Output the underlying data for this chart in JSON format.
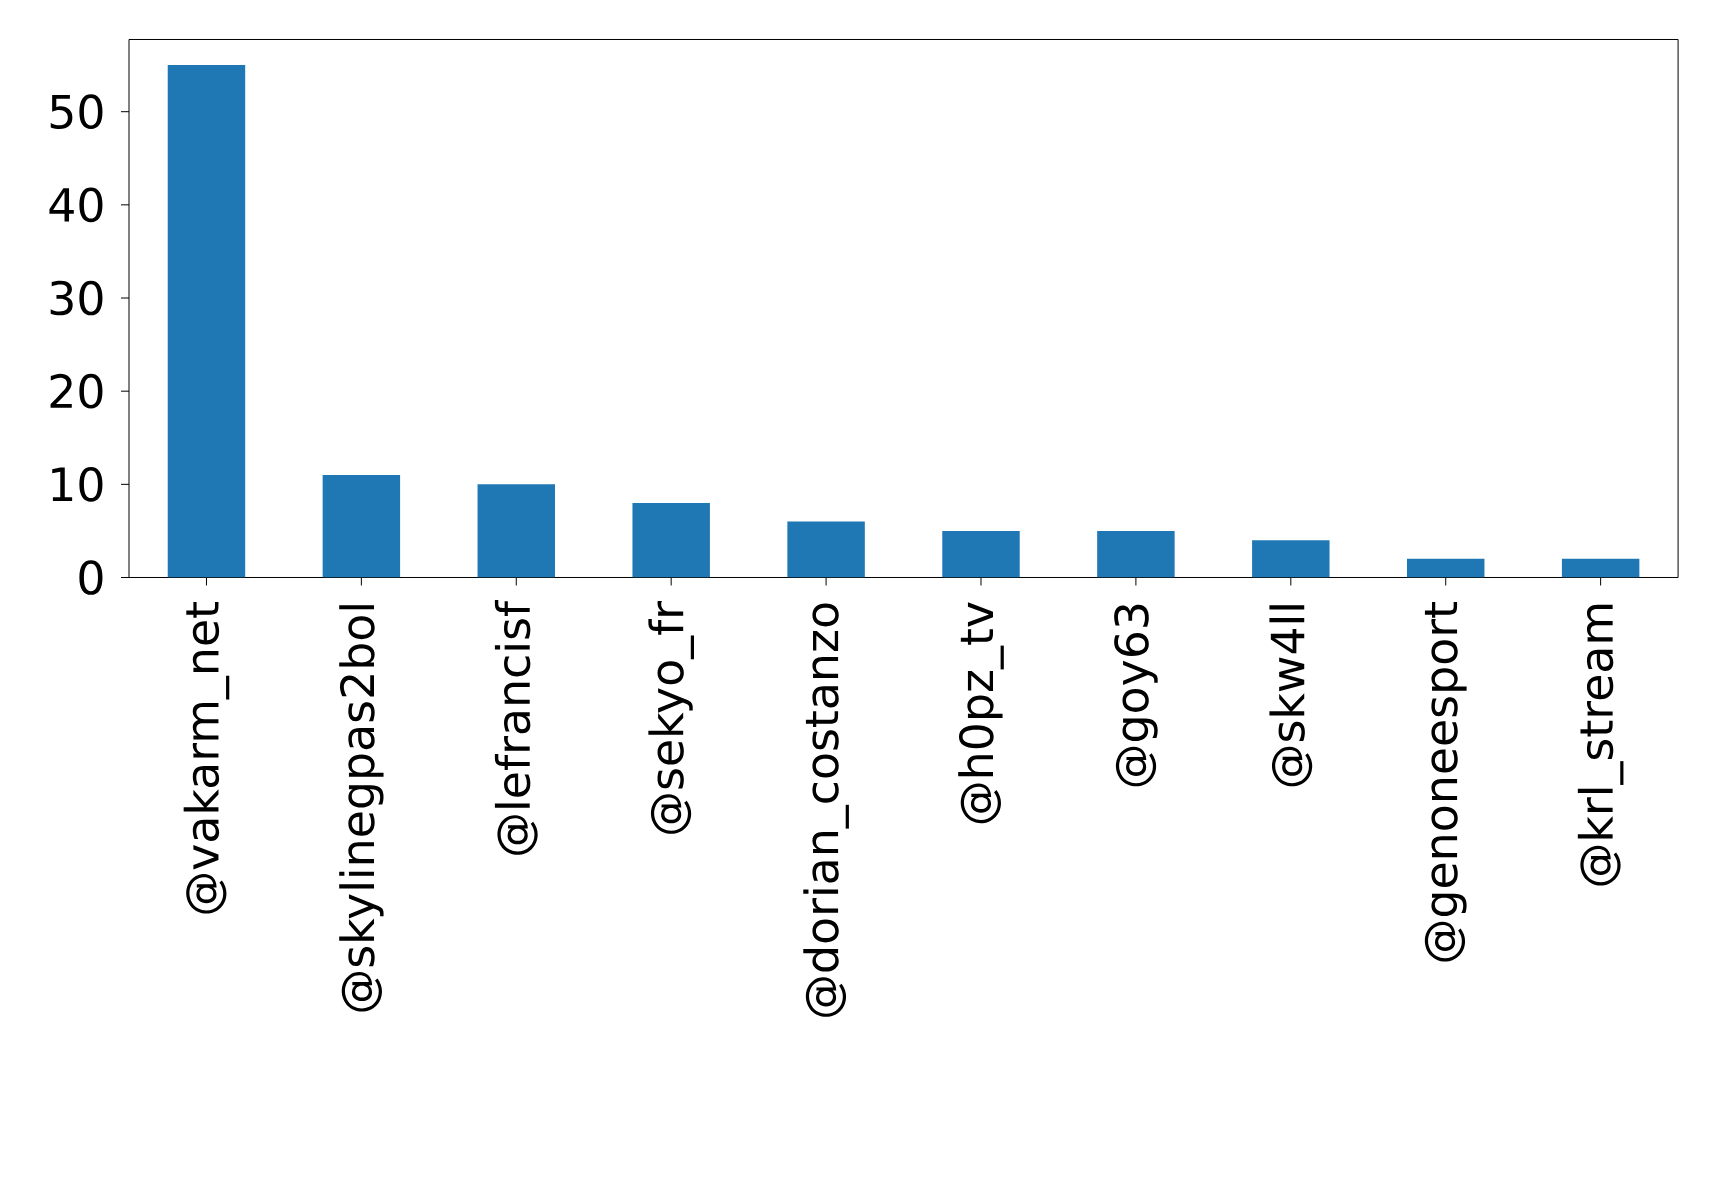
{
  "chart_data": {
    "type": "bar",
    "categories": [
      "@vakarm_net",
      "@skylinegpas2bol",
      "@lefrancisf",
      "@sekyo_fr",
      "@dorian_costanzo",
      "@h0pz_tv",
      "@goy63",
      "@skw4ll",
      "@genoneesport",
      "@krl_stream"
    ],
    "values": [
      55,
      11,
      10,
      8,
      6,
      5,
      5,
      4,
      2,
      2
    ],
    "color": "#1f77b4",
    "ylim": [
      0,
      57.75
    ],
    "yticks": [
      0,
      10,
      20,
      30,
      40,
      50
    ]
  }
}
